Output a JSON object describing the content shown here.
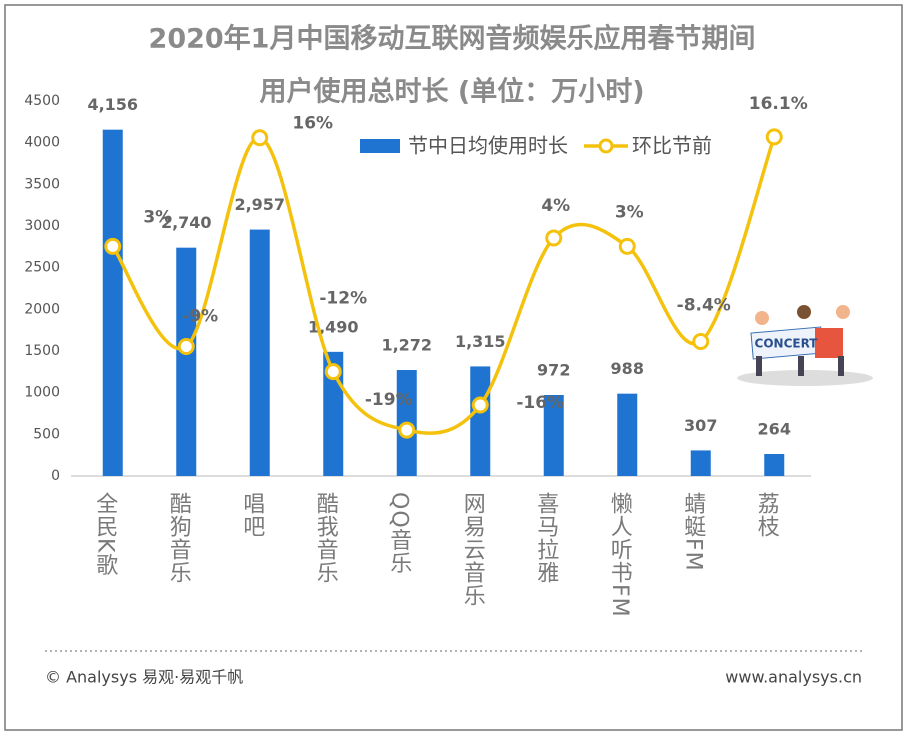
{
  "chart_data": {
    "type": "bar-line",
    "title": [
      "2020年1月中国移动互联网音频娱乐应用春节期间",
      "用户使用总时长 (单位：万小时)"
    ],
    "categories": [
      "全民K歌",
      "酷狗音乐",
      "唱吧",
      "酷我音乐",
      "QQ音乐",
      "网易云音乐",
      "喜马拉雅",
      "懒人听书FM",
      "蜻蜓FM",
      "荔枝"
    ],
    "series": [
      {
        "name": "节中日均使用时长",
        "type": "bar",
        "color": "#1f74d1",
        "values": [
          4156,
          2740,
          2957,
          1490,
          1272,
          1315,
          972,
          988,
          307,
          264
        ],
        "value_labels": [
          "4,156",
          "2,740",
          "2,957",
          "1,490",
          "1,272",
          "1,315",
          "972",
          "988",
          "307",
          "264"
        ]
      },
      {
        "name": "环比节前",
        "type": "line",
        "axis": "y2",
        "color": "#f4c20d",
        "values": [
          3,
          -9,
          16,
          -12,
          -19,
          -16,
          4,
          3,
          -8.4,
          16.1
        ],
        "value_labels": [
          "3%",
          "-9%",
          "16%",
          "-12%",
          "-19%",
          "-16%",
          "4%",
          "3%",
          "-8.4%",
          "16.1%"
        ]
      }
    ],
    "ylim": [
      0,
      4500
    ],
    "yticks": [
      0,
      500,
      1000,
      1500,
      2000,
      2500,
      3000,
      3500,
      4000,
      4500
    ],
    "y2lim": [
      -24.5,
      20.4
    ],
    "legend": "top-right",
    "footer_left": "© Analysys 易观·易观千帆",
    "footer_right": "www.analysys.cn"
  },
  "illustration": {
    "label": "CONCERT"
  }
}
